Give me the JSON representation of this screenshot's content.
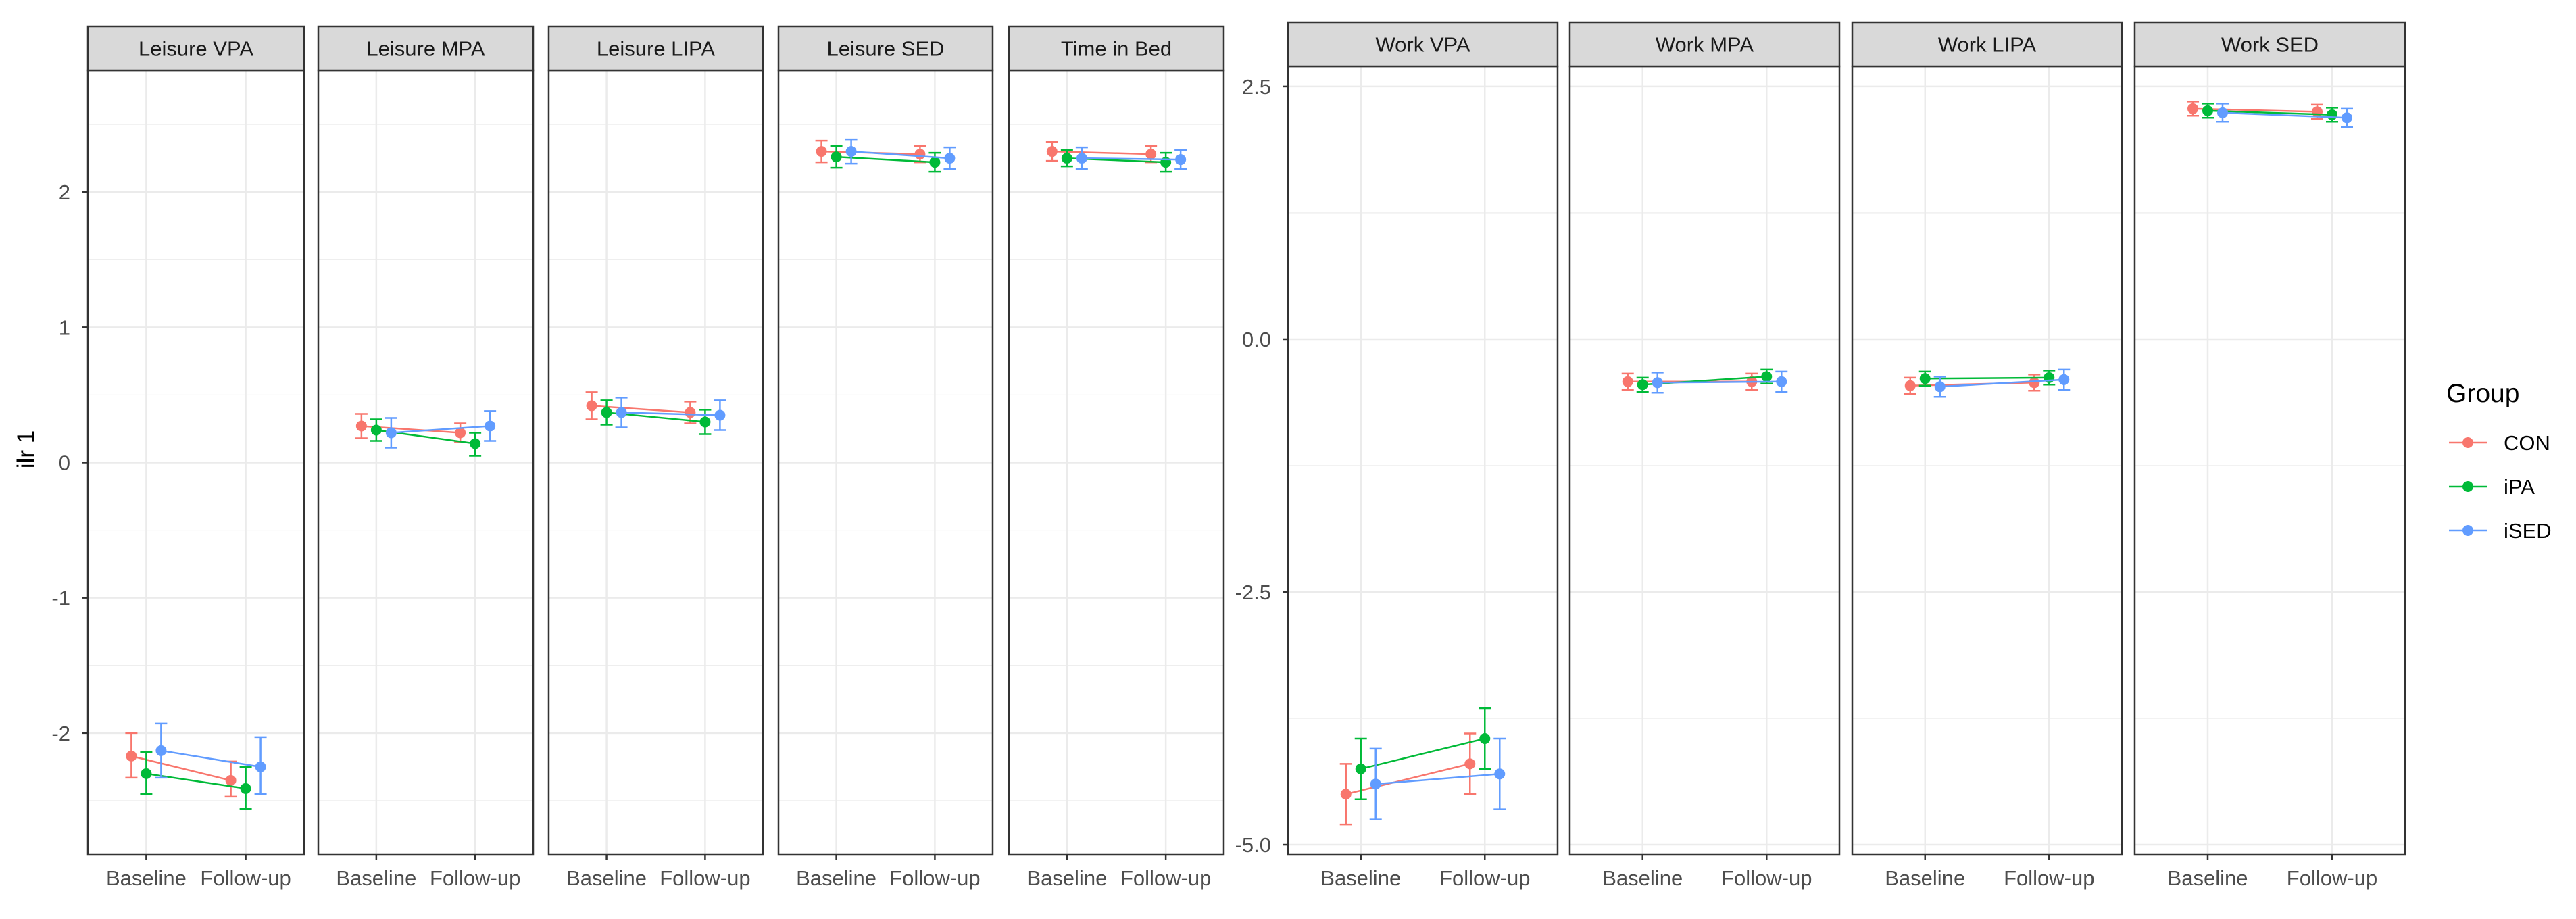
{
  "chart_data": {
    "type": "line",
    "ylabel": "ilr 1",
    "categories": [
      "Baseline",
      "Follow-up"
    ],
    "legend": {
      "title": "Group",
      "placement": "right",
      "entries": [
        {
          "name": "CON",
          "color": "#F8766D"
        },
        {
          "name": "iPA",
          "color": "#00BA38"
        },
        {
          "name": "iSED",
          "color": "#619CFF"
        }
      ]
    },
    "groups": [
      {
        "ylim": [
          -2.9,
          2.9
        ],
        "yticks": [
          -2,
          -1,
          0,
          1,
          2
        ],
        "ytick_labels": [
          "-2",
          "-1",
          "0",
          "1",
          "2"
        ],
        "panels": [
          {
            "title": "Leisure VPA",
            "series": [
              {
                "name": "CON",
                "values": [
                  -2.17,
                  -2.35
                ],
                "lower": [
                  -2.33,
                  -2.47
                ],
                "upper": [
                  -2.0,
                  -2.21
                ]
              },
              {
                "name": "iPA",
                "values": [
                  -2.3,
                  -2.41
                ],
                "lower": [
                  -2.45,
                  -2.56
                ],
                "upper": [
                  -2.14,
                  -2.25
                ]
              },
              {
                "name": "iSED",
                "values": [
                  -2.13,
                  -2.25
                ],
                "lower": [
                  -2.33,
                  -2.45
                ],
                "upper": [
                  -1.93,
                  -2.03
                ]
              }
            ]
          },
          {
            "title": "Leisure MPA",
            "series": [
              {
                "name": "CON",
                "values": [
                  0.27,
                  0.22
                ],
                "lower": [
                  0.18,
                  0.15
                ],
                "upper": [
                  0.36,
                  0.29
                ]
              },
              {
                "name": "iPA",
                "values": [
                  0.24,
                  0.14
                ],
                "lower": [
                  0.16,
                  0.05
                ],
                "upper": [
                  0.32,
                  0.22
                ]
              },
              {
                "name": "iSED",
                "values": [
                  0.22,
                  0.27
                ],
                "lower": [
                  0.11,
                  0.16
                ],
                "upper": [
                  0.33,
                  0.38
                ]
              }
            ]
          },
          {
            "title": "Leisure LIPA",
            "series": [
              {
                "name": "CON",
                "values": [
                  0.42,
                  0.37
                ],
                "lower": [
                  0.32,
                  0.29
                ],
                "upper": [
                  0.52,
                  0.45
                ]
              },
              {
                "name": "iPA",
                "values": [
                  0.37,
                  0.3
                ],
                "lower": [
                  0.28,
                  0.21
                ],
                "upper": [
                  0.46,
                  0.39
                ]
              },
              {
                "name": "iSED",
                "values": [
                  0.37,
                  0.35
                ],
                "lower": [
                  0.26,
                  0.24
                ],
                "upper": [
                  0.48,
                  0.46
                ]
              }
            ]
          },
          {
            "title": "Leisure SED",
            "series": [
              {
                "name": "CON",
                "values": [
                  2.3,
                  2.28
                ],
                "lower": [
                  2.22,
                  2.22
                ],
                "upper": [
                  2.38,
                  2.34
                ]
              },
              {
                "name": "iPA",
                "values": [
                  2.26,
                  2.22
                ],
                "lower": [
                  2.18,
                  2.15
                ],
                "upper": [
                  2.34,
                  2.29
                ]
              },
              {
                "name": "iSED",
                "values": [
                  2.3,
                  2.25
                ],
                "lower": [
                  2.21,
                  2.17
                ],
                "upper": [
                  2.39,
                  2.33
                ]
              }
            ]
          },
          {
            "title": "Time in Bed",
            "series": [
              {
                "name": "CON",
                "values": [
                  2.3,
                  2.28
                ],
                "lower": [
                  2.23,
                  2.22
                ],
                "upper": [
                  2.37,
                  2.34
                ]
              },
              {
                "name": "iPA",
                "values": [
                  2.25,
                  2.22
                ],
                "lower": [
                  2.19,
                  2.15
                ],
                "upper": [
                  2.31,
                  2.29
                ]
              },
              {
                "name": "iSED",
                "values": [
                  2.25,
                  2.24
                ],
                "lower": [
                  2.17,
                  2.17
                ],
                "upper": [
                  2.33,
                  2.31
                ]
              }
            ]
          }
        ]
      },
      {
        "ylim": [
          -5.1,
          2.7
        ],
        "yticks": [
          -5,
          -2.5,
          0,
          2.5
        ],
        "ytick_labels": [
          "-5.0",
          "-2.5",
          "0.0",
          "2.5"
        ],
        "panels": [
          {
            "title": "Work VPA",
            "series": [
              {
                "name": "CON",
                "values": [
                  -4.5,
                  -4.2
                ],
                "lower": [
                  -4.8,
                  -4.5
                ],
                "upper": [
                  -4.2,
                  -3.9
                ]
              },
              {
                "name": "iPA",
                "values": [
                  -4.25,
                  -3.95
                ],
                "lower": [
                  -4.55,
                  -4.25
                ],
                "upper": [
                  -3.95,
                  -3.65
                ]
              },
              {
                "name": "iSED",
                "values": [
                  -4.4,
                  -4.3
                ],
                "lower": [
                  -4.75,
                  -4.65
                ],
                "upper": [
                  -4.05,
                  -3.95
                ]
              }
            ]
          },
          {
            "title": "Work MPA",
            "series": [
              {
                "name": "CON",
                "values": [
                  -0.42,
                  -0.42
                ],
                "lower": [
                  -0.5,
                  -0.5
                ],
                "upper": [
                  -0.34,
                  -0.34
                ]
              },
              {
                "name": "iPA",
                "values": [
                  -0.45,
                  -0.37
                ],
                "lower": [
                  -0.52,
                  -0.44
                ],
                "upper": [
                  -0.38,
                  -0.3
                ]
              },
              {
                "name": "iSED",
                "values": [
                  -0.43,
                  -0.42
                ],
                "lower": [
                  -0.53,
                  -0.52
                ],
                "upper": [
                  -0.33,
                  -0.32
                ]
              }
            ]
          },
          {
            "title": "Work LIPA",
            "series": [
              {
                "name": "CON",
                "values": [
                  -0.46,
                  -0.43
                ],
                "lower": [
                  -0.54,
                  -0.51
                ],
                "upper": [
                  -0.38,
                  -0.35
                ]
              },
              {
                "name": "iPA",
                "values": [
                  -0.39,
                  -0.38
                ],
                "lower": [
                  -0.46,
                  -0.45
                ],
                "upper": [
                  -0.32,
                  -0.31
                ]
              },
              {
                "name": "iSED",
                "values": [
                  -0.47,
                  -0.4
                ],
                "lower": [
                  -0.57,
                  -0.5
                ],
                "upper": [
                  -0.37,
                  -0.3
                ]
              }
            ]
          },
          {
            "title": "Work SED",
            "series": [
              {
                "name": "CON",
                "values": [
                  2.28,
                  2.25
                ],
                "lower": [
                  2.21,
                  2.18
                ],
                "upper": [
                  2.35,
                  2.32
                ]
              },
              {
                "name": "iPA",
                "values": [
                  2.26,
                  2.22
                ],
                "lower": [
                  2.19,
                  2.15
                ],
                "upper": [
                  2.33,
                  2.29
                ]
              },
              {
                "name": "iSED",
                "values": [
                  2.24,
                  2.19
                ],
                "lower": [
                  2.15,
                  2.1
                ],
                "upper": [
                  2.33,
                  2.28
                ]
              }
            ]
          }
        ]
      }
    ]
  }
}
